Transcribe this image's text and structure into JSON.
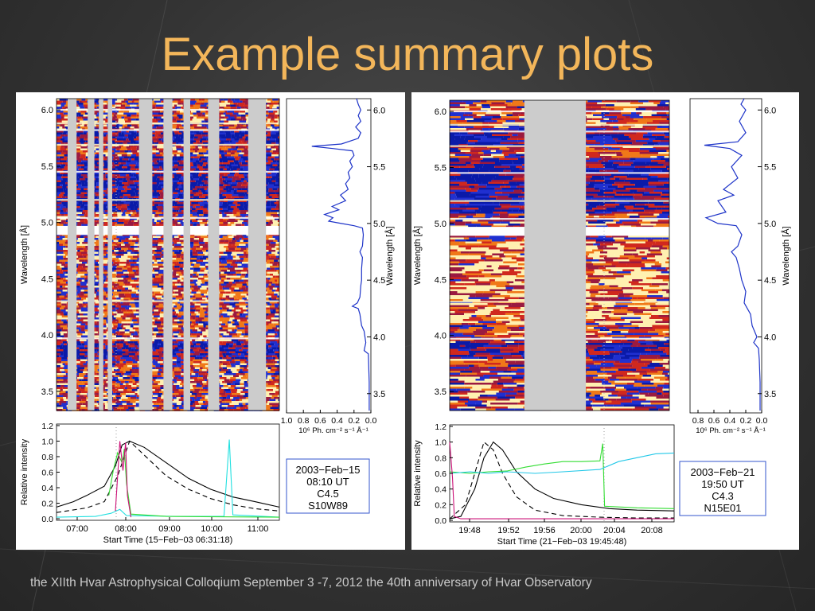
{
  "slide": {
    "title": "Example summary plots",
    "footer": "the  XIIth Hvar Astrophysical Colloqium September 3 -7, 2012 the 40th anniversary of Hvar Observatory",
    "title_color": "#f3b65a",
    "background_color": "#333333"
  },
  "chart_data": [
    {
      "panel": "left",
      "spectrogram": {
        "type": "heatmap",
        "ylabel": "Wavelength [Å]",
        "ylim": [
          3.33,
          6.1
        ],
        "yticks": [
          "6.0",
          "5.5",
          "5.0",
          "4.5",
          "4.0",
          "3.5"
        ],
        "colormap": [
          "#0a1aa8",
          "#2030d0",
          "#9a1a40",
          "#d0281e",
          "#f07818",
          "#fff0b0"
        ],
        "data_gaps_fraction": [
          [
            0.05,
            0.09
          ],
          [
            0.14,
            0.17
          ],
          [
            0.19,
            0.21
          ],
          [
            0.23,
            0.25
          ],
          [
            0.37,
            0.43
          ],
          [
            0.48,
            0.52
          ],
          [
            0.57,
            0.6
          ],
          [
            0.68,
            0.73
          ],
          [
            0.86,
            0.94
          ]
        ]
      },
      "spectrum": {
        "type": "line",
        "ylabel": "Wavelength [Å]",
        "xlabel": "10⁶ Ph. cm⁻² s⁻¹ Å⁻¹",
        "xticks": [
          "1.0",
          "0.8",
          "0.6",
          "0.4",
          "0.2",
          "0.0"
        ],
        "yticks": [
          "6.0",
          "5.5",
          "5.0",
          "4.5",
          "4.0",
          "3.5"
        ],
        "xlim": [
          1.0,
          0.0
        ],
        "ylim": [
          3.33,
          6.1
        ],
        "points": [
          [
            3.35,
            0.02
          ],
          [
            3.6,
            0.02
          ],
          [
            3.85,
            0.03
          ],
          [
            3.88,
            0.08
          ],
          [
            3.95,
            0.06
          ],
          [
            4.05,
            0.08
          ],
          [
            4.1,
            0.11
          ],
          [
            4.2,
            0.13
          ],
          [
            4.25,
            0.15
          ],
          [
            4.27,
            0.22
          ],
          [
            4.3,
            0.16
          ],
          [
            4.35,
            0.13
          ],
          [
            4.45,
            0.12
          ],
          [
            4.5,
            0.11
          ],
          [
            4.6,
            0.11
          ],
          [
            4.7,
            0.1
          ],
          [
            4.75,
            0.13
          ],
          [
            4.8,
            0.1
          ],
          [
            4.9,
            0.09
          ],
          [
            4.96,
            0.1
          ],
          [
            4.98,
            0.2
          ],
          [
            5.0,
            0.35
          ],
          [
            5.02,
            0.5
          ],
          [
            5.05,
            0.45
          ],
          [
            5.08,
            0.55
          ],
          [
            5.12,
            0.38
          ],
          [
            5.15,
            0.46
          ],
          [
            5.2,
            0.3
          ],
          [
            5.25,
            0.36
          ],
          [
            5.3,
            0.27
          ],
          [
            5.35,
            0.3
          ],
          [
            5.4,
            0.25
          ],
          [
            5.45,
            0.27
          ],
          [
            5.5,
            0.22
          ],
          [
            5.55,
            0.25
          ],
          [
            5.6,
            0.2
          ],
          [
            5.64,
            0.22
          ],
          [
            5.66,
            0.45
          ],
          [
            5.68,
            0.7
          ],
          [
            5.7,
            0.35
          ],
          [
            5.75,
            0.15
          ],
          [
            5.8,
            0.12
          ],
          [
            5.85,
            0.18
          ],
          [
            5.9,
            0.12
          ],
          [
            5.95,
            0.15
          ],
          [
            6.0,
            0.12
          ],
          [
            6.05,
            0.15
          ],
          [
            6.1,
            0.17
          ]
        ]
      },
      "lightcurve": {
        "type": "line",
        "ylabel": "Relative intensity",
        "xlabel": "Start Time (15−Feb−03 06:31:18)",
        "xticks": [
          "07:00",
          "08:00",
          "09:00",
          "10:00",
          "11:00"
        ],
        "yticks": [
          "1.2",
          "1.0",
          "0.8",
          "0.6",
          "0.4",
          "0.2",
          "0.0"
        ],
        "xlim": [
          6.52,
          11.55
        ],
        "ylim": [
          -0.02,
          1.22
        ],
        "series": [
          {
            "color": "#000000",
            "dash": "none",
            "points": [
              [
                6.52,
                0.15
              ],
              [
                6.9,
                0.22
              ],
              [
                7.2,
                0.3
              ],
              [
                7.6,
                0.42
              ],
              [
                7.85,
                0.68
              ],
              [
                8.0,
                0.95
              ],
              [
                8.17,
                1.0
              ],
              [
                8.5,
                0.92
              ],
              [
                9.0,
                0.72
              ],
              [
                9.5,
                0.52
              ],
              [
                10.0,
                0.38
              ],
              [
                10.5,
                0.28
              ],
              [
                11.0,
                0.22
              ],
              [
                11.55,
                0.15
              ]
            ]
          },
          {
            "color": "#000000",
            "dash": "6,4",
            "points": [
              [
                6.52,
                0.08
              ],
              [
                7.2,
                0.14
              ],
              [
                7.6,
                0.22
              ],
              [
                7.9,
                0.55
              ],
              [
                8.17,
                1.0
              ],
              [
                8.5,
                0.82
              ],
              [
                9.0,
                0.55
              ],
              [
                9.5,
                0.38
              ],
              [
                10.0,
                0.26
              ],
              [
                10.5,
                0.18
              ],
              [
                11.0,
                0.13
              ],
              [
                11.55,
                0.1
              ]
            ]
          },
          {
            "color": "#22e0e0",
            "dash": "none",
            "points": [
              [
                6.52,
                0.02
              ],
              [
                7.4,
                0.03
              ],
              [
                7.75,
                0.07
              ],
              [
                7.95,
                0.12
              ],
              [
                8.1,
                0.04
              ],
              [
                9.2,
                0.03
              ],
              [
                10.3,
                0.03
              ],
              [
                10.42,
                1.02
              ],
              [
                10.5,
                0.05
              ],
              [
                11.55,
                0.02
              ]
            ]
          },
          {
            "color": "#33dd33",
            "dash": "none",
            "points": [
              [
                7.7,
                0.3
              ],
              [
                7.8,
                0.62
              ],
              [
                7.9,
                0.85
              ],
              [
                8.0,
                0.72
              ],
              [
                8.05,
                0.9
              ],
              [
                8.1,
                0.45
              ],
              [
                8.2,
                0.06
              ],
              [
                9.0,
                0.03
              ],
              [
                11.55,
                0.02
              ]
            ]
          },
          {
            "color": "#cc1177",
            "dash": "none",
            "points": [
              [
                7.85,
                0.1
              ],
              [
                7.95,
                1.0
              ],
              [
                8.02,
                0.62
              ],
              [
                8.08,
                0.98
              ],
              [
                8.12,
                0.3
              ],
              [
                8.2,
                0.02
              ]
            ]
          }
        ]
      },
      "legend_box": {
        "date": "2003−Feb−15",
        "time": "08:10 UT",
        "class": "C4.5",
        "location": "S10W89"
      }
    },
    {
      "panel": "right",
      "spectrogram": {
        "type": "heatmap",
        "ylabel": "Wavelength [Å]",
        "ylim": [
          3.33,
          6.1
        ],
        "yticks": [
          "6.0",
          "5.5",
          "5.0",
          "4.5",
          "4.0",
          "3.5"
        ],
        "colormap": [
          "#0a1aa8",
          "#2030d0",
          "#9a1a40",
          "#d0281e",
          "#f07818",
          "#fff0b0"
        ],
        "data_gaps_fraction": [
          [
            0.34,
            0.62
          ]
        ]
      },
      "spectrum": {
        "type": "line",
        "ylabel": "Wavelength [Å]",
        "xlabel": "10⁶ Ph. cm⁻² s⁻¹ Å⁻¹",
        "xticks": [
          "0.8",
          "0.6",
          "0.4",
          "0.2",
          "0.0"
        ],
        "yticks": [
          "6.0",
          "5.5",
          "5.0",
          "4.5",
          "4.0",
          "3.5"
        ],
        "xlim": [
          0.9,
          0.0
        ],
        "ylim": [
          3.33,
          6.1
        ],
        "points": [
          [
            3.35,
            0.02
          ],
          [
            3.6,
            0.02
          ],
          [
            3.8,
            0.03
          ],
          [
            3.9,
            0.04
          ],
          [
            3.95,
            0.1
          ],
          [
            4.0,
            0.06
          ],
          [
            4.1,
            0.12
          ],
          [
            4.2,
            0.14
          ],
          [
            4.3,
            0.22
          ],
          [
            4.4,
            0.2
          ],
          [
            4.5,
            0.25
          ],
          [
            4.6,
            0.28
          ],
          [
            4.7,
            0.32
          ],
          [
            4.75,
            0.38
          ],
          [
            4.8,
            0.3
          ],
          [
            4.9,
            0.25
          ],
          [
            4.98,
            0.32
          ],
          [
            5.0,
            0.55
          ],
          [
            5.05,
            0.7
          ],
          [
            5.1,
            0.45
          ],
          [
            5.2,
            0.55
          ],
          [
            5.25,
            0.35
          ],
          [
            5.3,
            0.48
          ],
          [
            5.4,
            0.3
          ],
          [
            5.5,
            0.38
          ],
          [
            5.6,
            0.25
          ],
          [
            5.66,
            0.4
          ],
          [
            5.69,
            0.72
          ],
          [
            5.72,
            0.3
          ],
          [
            5.8,
            0.2
          ],
          [
            5.9,
            0.28
          ],
          [
            6.0,
            0.2
          ],
          [
            6.05,
            0.26
          ],
          [
            6.1,
            0.22
          ]
        ]
      },
      "lightcurve": {
        "type": "line",
        "ylabel": "Relative intensity",
        "xlabel": "Start Time (21−Feb−03 19:45:48)",
        "xticks": [
          "19:48",
          "19:52",
          "19:56",
          "20:00",
          "20:04",
          "20:08"
        ],
        "yticks": [
          "1.2",
          "1.0",
          "0.8",
          "0.6",
          "0.4",
          "0.2",
          "0.0"
        ],
        "xlim": [
          45.8,
          70.0
        ],
        "ylim": [
          -0.02,
          1.22
        ],
        "series": [
          {
            "color": "#000000",
            "dash": "none",
            "points": [
              [
                45.8,
                0.02
              ],
              [
                47.0,
                0.05
              ],
              [
                48.5,
                0.4
              ],
              [
                49.5,
                0.8
              ],
              [
                50.5,
                1.0
              ],
              [
                51.5,
                0.9
              ],
              [
                53.0,
                0.62
              ],
              [
                55.0,
                0.4
              ],
              [
                57.0,
                0.28
              ],
              [
                60.0,
                0.2
              ],
              [
                63.0,
                0.15
              ],
              [
                66.0,
                0.13
              ],
              [
                70.0,
                0.12
              ]
            ]
          },
          {
            "color": "#000000",
            "dash": "6,4",
            "points": [
              [
                45.8,
                0.02
              ],
              [
                47.5,
                0.2
              ],
              [
                48.5,
                0.6
              ],
              [
                49.5,
                1.0
              ],
              [
                50.5,
                0.9
              ],
              [
                51.5,
                0.6
              ],
              [
                53.0,
                0.3
              ],
              [
                55.0,
                0.13
              ],
              [
                58.0,
                0.06
              ],
              [
                62.0,
                0.04
              ],
              [
                66.0,
                0.03
              ],
              [
                70.0,
                0.03
              ]
            ]
          },
          {
            "color": "#33dd33",
            "dash": "none",
            "points": [
              [
                45.8,
                0.62
              ],
              [
                48.0,
                0.6
              ],
              [
                50.0,
                0.62
              ],
              [
                52.0,
                0.63
              ],
              [
                54.0,
                0.68
              ],
              [
                56.0,
                0.72
              ],
              [
                58.0,
                0.75
              ],
              [
                60.0,
                0.75
              ],
              [
                62.0,
                0.76
              ],
              [
                62.3,
                0.98
              ],
              [
                62.5,
                0.18
              ],
              [
                66.0,
                0.16
              ],
              [
                70.0,
                0.15
              ]
            ]
          },
          {
            "color": "#22c8e8",
            "dash": "none",
            "points": [
              [
                45.8,
                0.6
              ],
              [
                48.0,
                0.62
              ],
              [
                50.0,
                0.6
              ],
              [
                52.0,
                0.62
              ],
              [
                55.0,
                0.6
              ],
              [
                58.0,
                0.62
              ],
              [
                62.0,
                0.65
              ],
              [
                64.0,
                0.75
              ],
              [
                66.0,
                0.8
              ],
              [
                68.0,
                0.85
              ],
              [
                70.0,
                0.86
              ]
            ]
          },
          {
            "color": "#cc1177",
            "dash": "none",
            "points": [
              [
                45.8,
                1.0
              ],
              [
                46.1,
                0.55
              ],
              [
                46.3,
                0.05
              ],
              [
                47.0,
                0.02
              ],
              [
                70.0,
                0.02
              ]
            ]
          }
        ]
      },
      "legend_box": {
        "date": "2003−Feb−21",
        "time": "19:50 UT",
        "class": "C4.3",
        "location": "N15E01"
      }
    }
  ]
}
